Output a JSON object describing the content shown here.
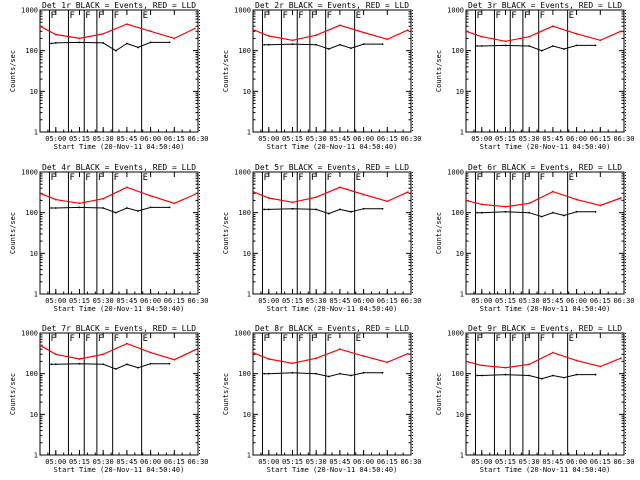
{
  "figure": {
    "background": "#ffffff",
    "axis_color": "#000000",
    "events_color": "#000000",
    "lld_color": "#ff0000"
  },
  "chart_data": [
    {
      "type": "line",
      "title": "Det 1r BLACK = Events, RED = LLD",
      "xlabel": "Start Time (20-Nov-11 04:50:40)",
      "ylabel": "Counts/sec",
      "yscale": "log",
      "ylim": [
        1,
        1000
      ],
      "xlim": [
        "04:50",
        "06:30"
      ],
      "x_tick_labels": [
        "05:00",
        "05:15",
        "05:30",
        "05:45",
        "06:00",
        "06:15",
        "06:30"
      ],
      "y_tick_labels": [
        "1",
        "10",
        "100",
        "1000"
      ],
      "grid": false,
      "markers": [
        "F",
        "F",
        "F",
        "F",
        "F",
        "E"
      ],
      "series": [
        {
          "role": "events",
          "color": "#000000",
          "x": [
            "04:57",
            "05:00",
            "05:15",
            "05:30",
            "05:38",
            "05:45",
            "05:52",
            "06:00",
            "06:12"
          ],
          "y": [
            150,
            155,
            160,
            155,
            100,
            150,
            120,
            160,
            160
          ]
        },
        {
          "role": "lld",
          "color": "#ff0000",
          "x": [
            "04:50",
            "05:00",
            "05:15",
            "05:30",
            "05:45",
            "06:00",
            "06:15",
            "06:28"
          ],
          "y": [
            400,
            250,
            200,
            260,
            450,
            300,
            200,
            350
          ]
        }
      ]
    },
    {
      "type": "line",
      "title": "Det 2r BLACK = Events, RED = LLD",
      "xlabel": "Start Time (20-Nov-11 04:50:40)",
      "ylabel": "Counts/sec",
      "yscale": "log",
      "ylim": [
        1,
        1000
      ],
      "xlim": [
        "04:50",
        "06:30"
      ],
      "x_tick_labels": [
        "05:00",
        "05:15",
        "05:30",
        "05:45",
        "06:00",
        "06:15",
        "06:30"
      ],
      "y_tick_labels": [
        "1",
        "10",
        "100",
        "1000"
      ],
      "grid": false,
      "markers": [
        "F",
        "F",
        "F",
        "F",
        "F",
        "E"
      ],
      "series": [
        {
          "role": "events",
          "color": "#000000",
          "x": [
            "04:57",
            "05:00",
            "05:15",
            "05:30",
            "05:38",
            "05:45",
            "05:52",
            "06:00",
            "06:12"
          ],
          "y": [
            140,
            140,
            145,
            140,
            110,
            140,
            115,
            145,
            145
          ]
        },
        {
          "role": "lld",
          "color": "#ff0000",
          "x": [
            "04:50",
            "05:00",
            "05:15",
            "05:30",
            "05:45",
            "06:00",
            "06:15",
            "06:28"
          ],
          "y": [
            330,
            230,
            180,
            240,
            420,
            280,
            190,
            320
          ]
        }
      ]
    },
    {
      "type": "line",
      "title": "Det 3r BLACK = Events, RED = LLD",
      "xlabel": "Start Time (20-Nov-11 04:50:40)",
      "ylabel": "Counts/sec",
      "yscale": "log",
      "ylim": [
        1,
        1000
      ],
      "xlim": [
        "04:50",
        "06:30"
      ],
      "x_tick_labels": [
        "05:00",
        "05:15",
        "05:30",
        "05:45",
        "06:00",
        "06:15",
        "06:30"
      ],
      "y_tick_labels": [
        "1",
        "10",
        "100",
        "1000"
      ],
      "grid": false,
      "markers": [
        "F",
        "F",
        "F",
        "F",
        "F",
        "E"
      ],
      "series": [
        {
          "role": "events",
          "color": "#000000",
          "x": [
            "04:57",
            "05:00",
            "05:15",
            "05:30",
            "05:38",
            "05:45",
            "05:52",
            "06:00",
            "06:12"
          ],
          "y": [
            130,
            130,
            135,
            130,
            100,
            130,
            110,
            135,
            135
          ]
        },
        {
          "role": "lld",
          "color": "#ff0000",
          "x": [
            "04:50",
            "05:00",
            "05:15",
            "05:30",
            "05:45",
            "06:00",
            "06:15",
            "06:28"
          ],
          "y": [
            300,
            220,
            170,
            220,
            400,
            260,
            180,
            300
          ]
        }
      ]
    },
    {
      "type": "line",
      "title": "Det 4r BLACK = Events, RED = LLD",
      "xlabel": "Start Time (20-Nov-11 04:50:40)",
      "ylabel": "Counts/sec",
      "yscale": "log",
      "ylim": [
        1,
        1000
      ],
      "xlim": [
        "04:50",
        "06:30"
      ],
      "x_tick_labels": [
        "05:00",
        "05:15",
        "05:30",
        "05:45",
        "06:00",
        "06:15",
        "06:30"
      ],
      "y_tick_labels": [
        "1",
        "10",
        "100",
        "1000"
      ],
      "grid": false,
      "markers": [
        "F",
        "F",
        "F",
        "F",
        "F",
        "E"
      ],
      "series": [
        {
          "role": "events",
          "color": "#000000",
          "x": [
            "04:57",
            "05:00",
            "05:15",
            "05:30",
            "05:38",
            "05:45",
            "05:52",
            "06:00",
            "06:12"
          ],
          "y": [
            130,
            130,
            135,
            130,
            100,
            130,
            110,
            135,
            135
          ]
        },
        {
          "role": "lld",
          "color": "#ff0000",
          "x": [
            "04:50",
            "05:00",
            "05:15",
            "05:30",
            "05:45",
            "06:00",
            "06:15",
            "06:28"
          ],
          "y": [
            300,
            210,
            170,
            220,
            420,
            260,
            170,
            280
          ]
        }
      ]
    },
    {
      "type": "line",
      "title": "Det 5r BLACK = Events, RED = LLD",
      "xlabel": "Start Time (20-Nov-11 04:50:40)",
      "ylabel": "Counts/sec",
      "yscale": "log",
      "ylim": [
        1,
        1000
      ],
      "xlim": [
        "04:50",
        "06:30"
      ],
      "x_tick_labels": [
        "05:00",
        "05:15",
        "05:30",
        "05:45",
        "06:00",
        "06:15",
        "06:30"
      ],
      "y_tick_labels": [
        "1",
        "10",
        "100",
        "1000"
      ],
      "grid": false,
      "markers": [
        "F",
        "F",
        "F",
        "F",
        "F",
        "E"
      ],
      "series": [
        {
          "role": "events",
          "color": "#000000",
          "x": [
            "04:57",
            "05:00",
            "05:15",
            "05:30",
            "05:38",
            "05:45",
            "05:52",
            "06:00",
            "06:12"
          ],
          "y": [
            120,
            120,
            125,
            120,
            95,
            120,
            105,
            125,
            125
          ]
        },
        {
          "role": "lld",
          "color": "#ff0000",
          "x": [
            "04:50",
            "05:00",
            "05:15",
            "05:30",
            "05:45",
            "06:00",
            "06:15",
            "06:28"
          ],
          "y": [
            330,
            230,
            180,
            240,
            420,
            280,
            190,
            320
          ]
        }
      ]
    },
    {
      "type": "line",
      "title": "Det 6r BLACK = Events, RED = LLD",
      "xlabel": "Start Time (20-Nov-11 04:50:40)",
      "ylabel": "Counts/sec",
      "yscale": "log",
      "ylim": [
        1,
        1000
      ],
      "xlim": [
        "04:50",
        "06:30"
      ],
      "x_tick_labels": [
        "05:00",
        "05:15",
        "05:30",
        "05:45",
        "06:00",
        "06:15",
        "06:30"
      ],
      "y_tick_labels": [
        "1",
        "10",
        "100",
        "1000"
      ],
      "grid": false,
      "markers": [
        "F",
        "F",
        "F",
        "F",
        "F",
        "E"
      ],
      "series": [
        {
          "role": "events",
          "color": "#000000",
          "x": [
            "04:57",
            "05:00",
            "05:15",
            "05:30",
            "05:38",
            "05:45",
            "05:52",
            "06:00",
            "06:12"
          ],
          "y": [
            100,
            100,
            105,
            100,
            80,
            100,
            85,
            105,
            105
          ]
        },
        {
          "role": "lld",
          "color": "#ff0000",
          "x": [
            "04:50",
            "05:00",
            "05:15",
            "05:30",
            "05:45",
            "06:00",
            "06:15",
            "06:28"
          ],
          "y": [
            200,
            160,
            140,
            170,
            330,
            210,
            150,
            230
          ]
        }
      ]
    },
    {
      "type": "line",
      "title": "Det 7r BLACK = Events, RED = LLD",
      "xlabel": "Start Time (20-Nov-11 04:50:40)",
      "ylabel": "Counts/sec",
      "yscale": "log",
      "ylim": [
        1,
        1000
      ],
      "xlim": [
        "04:50",
        "06:30"
      ],
      "x_tick_labels": [
        "05:00",
        "05:15",
        "05:30",
        "05:45",
        "06:00",
        "06:15",
        "06:30"
      ],
      "y_tick_labels": [
        "1",
        "10",
        "100",
        "1000"
      ],
      "grid": false,
      "markers": [
        "F",
        "F",
        "F",
        "F",
        "F",
        "E"
      ],
      "series": [
        {
          "role": "events",
          "color": "#000000",
          "x": [
            "04:57",
            "05:00",
            "05:15",
            "05:30",
            "05:38",
            "05:45",
            "05:52",
            "06:00",
            "06:12"
          ],
          "y": [
            170,
            170,
            175,
            170,
            130,
            170,
            140,
            175,
            175
          ]
        },
        {
          "role": "lld",
          "color": "#ff0000",
          "x": [
            "04:50",
            "05:00",
            "05:15",
            "05:30",
            "05:45",
            "06:00",
            "06:15",
            "06:28"
          ],
          "y": [
            500,
            300,
            230,
            300,
            550,
            330,
            220,
            380
          ]
        }
      ]
    },
    {
      "type": "line",
      "title": "Det 8r BLACK = Events, RED = LLD",
      "xlabel": "Start Time (20-Nov-11 04:50:40)",
      "ylabel": "Counts/sec",
      "yscale": "log",
      "ylim": [
        1,
        1000
      ],
      "xlim": [
        "04:50",
        "06:30"
      ],
      "x_tick_labels": [
        "05:00",
        "05:15",
        "05:30",
        "05:45",
        "06:00",
        "06:15",
        "06:30"
      ],
      "y_tick_labels": [
        "1",
        "10",
        "100",
        "1000"
      ],
      "grid": false,
      "markers": [
        "F",
        "F",
        "F",
        "F",
        "F",
        "E"
      ],
      "series": [
        {
          "role": "events",
          "color": "#000000",
          "x": [
            "04:57",
            "05:00",
            "05:15",
            "05:30",
            "05:38",
            "05:45",
            "05:52",
            "06:00",
            "06:12"
          ],
          "y": [
            100,
            100,
            105,
            100,
            85,
            100,
            90,
            105,
            105
          ]
        },
        {
          "role": "lld",
          "color": "#ff0000",
          "x": [
            "04:50",
            "05:00",
            "05:15",
            "05:30",
            "05:45",
            "06:00",
            "06:15",
            "06:28"
          ],
          "y": [
            330,
            230,
            180,
            240,
            400,
            270,
            190,
            310
          ]
        }
      ]
    },
    {
      "type": "line",
      "title": "Det 9r BLACK = Events, RED = LLD",
      "xlabel": "Start Time (20-Nov-11 04:50:40)",
      "ylabel": "Counts/sec",
      "yscale": "log",
      "ylim": [
        1,
        1000
      ],
      "xlim": [
        "04:50",
        "06:30"
      ],
      "x_tick_labels": [
        "05:00",
        "05:15",
        "05:30",
        "05:45",
        "06:00",
        "06:15",
        "06:30"
      ],
      "y_tick_labels": [
        "1",
        "10",
        "100",
        "1000"
      ],
      "grid": false,
      "markers": [
        "F",
        "F",
        "F",
        "F",
        "F",
        "E"
      ],
      "series": [
        {
          "role": "events",
          "color": "#000000",
          "x": [
            "04:57",
            "05:00",
            "05:15",
            "05:30",
            "05:38",
            "05:45",
            "05:52",
            "06:00",
            "06:12"
          ],
          "y": [
            90,
            90,
            95,
            90,
            75,
            90,
            80,
            95,
            95
          ]
        },
        {
          "role": "lld",
          "color": "#ff0000",
          "x": [
            "04:50",
            "05:00",
            "05:15",
            "05:30",
            "05:45",
            "06:00",
            "06:15",
            "06:28"
          ],
          "y": [
            200,
            160,
            140,
            170,
            330,
            210,
            150,
            240
          ]
        }
      ]
    }
  ]
}
